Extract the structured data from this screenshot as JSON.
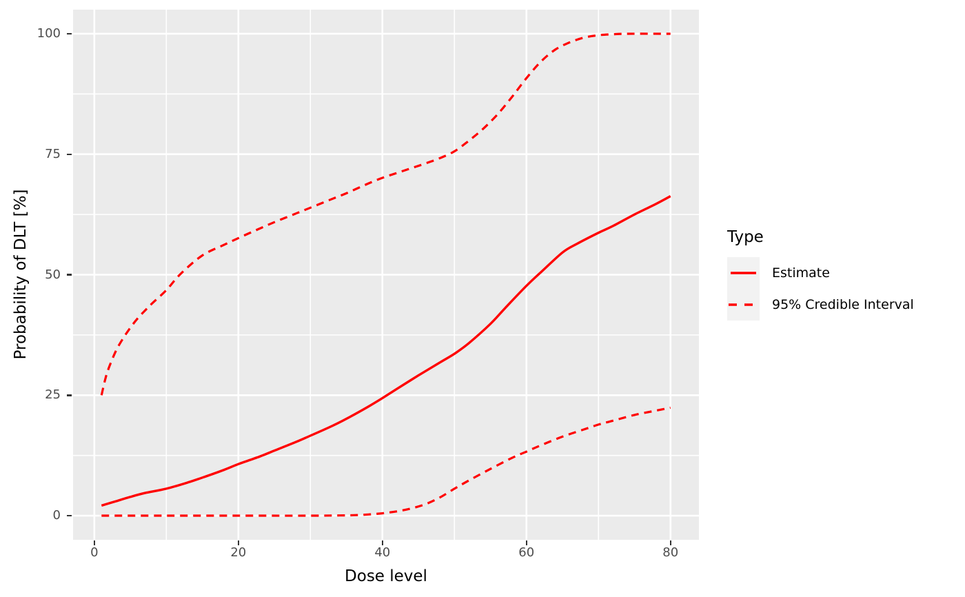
{
  "chart_data": {
    "type": "line",
    "title": "",
    "xlabel": "Dose level",
    "ylabel": "Probability of DLT [%]",
    "x_ticks": [
      0,
      20,
      40,
      60,
      80
    ],
    "y_ticks": [
      0,
      25,
      50,
      75,
      100
    ],
    "x_minor": [
      10,
      30,
      50,
      70
    ],
    "y_minor": [
      12.5,
      37.5,
      62.5,
      87.5
    ],
    "xlim": [
      -2.95,
      83.95
    ],
    "ylim": [
      -5,
      105
    ],
    "grid": "on",
    "legend": {
      "title": "Type",
      "position": "right",
      "entries": [
        {
          "label": "Estimate",
          "style": "solid"
        },
        {
          "label": "95% Credible Interval",
          "style": "dashed"
        }
      ]
    },
    "colors": {
      "line": "#FF0000",
      "panel_bg": "#EBEBEB",
      "grid": "#FFFFFF",
      "tick_text": "#4D4D4D",
      "tick_mark": "#333333",
      "axis_text": "#000000",
      "legend_key_bg": "#F2F2F2"
    },
    "series": [
      {
        "name": "Estimate",
        "style": "solid",
        "points": [
          [
            1,
            2.1
          ],
          [
            3,
            3.0
          ],
          [
            5,
            3.9
          ],
          [
            7,
            4.7
          ],
          [
            10,
            5.6
          ],
          [
            13,
            6.9
          ],
          [
            15,
            7.9
          ],
          [
            18,
            9.5
          ],
          [
            20,
            10.7
          ],
          [
            23,
            12.3
          ],
          [
            25,
            13.5
          ],
          [
            28,
            15.3
          ],
          [
            30,
            16.6
          ],
          [
            33,
            18.6
          ],
          [
            35,
            20.1
          ],
          [
            38,
            22.6
          ],
          [
            40,
            24.4
          ],
          [
            42,
            26.3
          ],
          [
            45,
            29.1
          ],
          [
            48,
            31.8
          ],
          [
            50,
            33.6
          ],
          [
            52,
            35.8
          ],
          [
            55,
            39.8
          ],
          [
            57,
            43.0
          ],
          [
            60,
            47.7
          ],
          [
            62,
            50.5
          ],
          [
            65,
            54.6
          ],
          [
            67,
            56.4
          ],
          [
            70,
            58.7
          ],
          [
            72,
            60.1
          ],
          [
            75,
            62.5
          ],
          [
            78,
            64.7
          ],
          [
            80,
            66.3
          ]
        ]
      },
      {
        "name": "95% Credible Interval (upper)",
        "style": "dashed",
        "points": [
          [
            1,
            25
          ],
          [
            1.5,
            28.2
          ],
          [
            2,
            30.6
          ],
          [
            3,
            34.2
          ],
          [
            4,
            36.8
          ],
          [
            5,
            39.0
          ],
          [
            6,
            40.9
          ],
          [
            7,
            42.5
          ],
          [
            8,
            44.0
          ],
          [
            10,
            46.8
          ],
          [
            12,
            50.2
          ],
          [
            15,
            54.0
          ],
          [
            18,
            56.2
          ],
          [
            20,
            57.6
          ],
          [
            23,
            59.6
          ],
          [
            25,
            60.9
          ],
          [
            28,
            62.7
          ],
          [
            30,
            63.9
          ],
          [
            33,
            65.7
          ],
          [
            35,
            66.9
          ],
          [
            38,
            68.9
          ],
          [
            40,
            70.1
          ],
          [
            42,
            71.1
          ],
          [
            44,
            72.1
          ],
          [
            46,
            73.1
          ],
          [
            48,
            74.2
          ],
          [
            50,
            75.6
          ],
          [
            52,
            77.8
          ],
          [
            54,
            80.3
          ],
          [
            56,
            83.3
          ],
          [
            58,
            86.9
          ],
          [
            60,
            90.8
          ],
          [
            62,
            94.2
          ],
          [
            64,
            96.7
          ],
          [
            66,
            98.2
          ],
          [
            68,
            99.2
          ],
          [
            70,
            99.7
          ],
          [
            72,
            99.9
          ],
          [
            74,
            100
          ],
          [
            80,
            100
          ]
        ]
      },
      {
        "name": "95% Credible Interval (lower)",
        "style": "dashed",
        "points": [
          [
            1,
            0
          ],
          [
            10,
            0
          ],
          [
            20,
            0
          ],
          [
            30,
            0
          ],
          [
            34,
            0.05
          ],
          [
            36,
            0.1
          ],
          [
            38,
            0.25
          ],
          [
            40,
            0.5
          ],
          [
            42,
            0.9
          ],
          [
            44,
            1.5
          ],
          [
            46,
            2.4
          ],
          [
            48,
            3.8
          ],
          [
            50,
            5.6
          ],
          [
            52,
            7.3
          ],
          [
            55,
            9.7
          ],
          [
            58,
            12.0
          ],
          [
            60,
            13.3
          ],
          [
            62,
            14.6
          ],
          [
            65,
            16.4
          ],
          [
            68,
            17.9
          ],
          [
            70,
            18.9
          ],
          [
            72,
            19.7
          ],
          [
            75,
            20.9
          ],
          [
            78,
            21.8
          ],
          [
            80,
            22.4
          ]
        ]
      }
    ]
  }
}
